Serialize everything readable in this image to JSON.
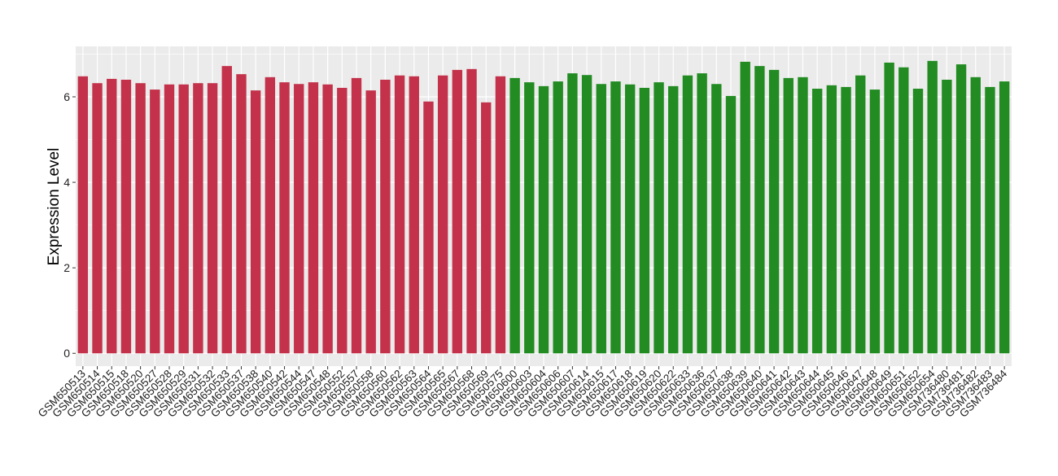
{
  "chart_data": {
    "type": "bar",
    "title": "",
    "xlabel": "",
    "ylabel": "Expression Level",
    "ylim": [
      -0.3,
      7.18
    ],
    "yticks": [
      0,
      2,
      4,
      6
    ],
    "grid": true,
    "legend": "none",
    "colors": {
      "group1": "#C3324A",
      "group2": "#228B22",
      "panel": "#EBEBEB",
      "grid": "#FFFFFF"
    },
    "categories": [
      "GSM650513",
      "GSM650514",
      "GSM650515",
      "GSM650518",
      "GSM650520",
      "GSM650527",
      "GSM650528",
      "GSM650529",
      "GSM650531",
      "GSM650532",
      "GSM650533",
      "GSM650537",
      "GSM650538",
      "GSM650540",
      "GSM650542",
      "GSM650544",
      "GSM650547",
      "GSM650548",
      "GSM650552",
      "GSM650557",
      "GSM650558",
      "GSM650560",
      "GSM650562",
      "GSM650563",
      "GSM650564",
      "GSM650565",
      "GSM650567",
      "GSM650568",
      "GSM650569",
      "GSM650575",
      "GSM650600",
      "GSM650603",
      "GSM650604",
      "GSM650606",
      "GSM650607",
      "GSM650614",
      "GSM650615",
      "GSM650617",
      "GSM650618",
      "GSM650619",
      "GSM650620",
      "GSM650622",
      "GSM650633",
      "GSM650636",
      "GSM650637",
      "GSM650638",
      "GSM650639",
      "GSM650640",
      "GSM650641",
      "GSM650642",
      "GSM650643",
      "GSM650644",
      "GSM650645",
      "GSM650646",
      "GSM650647",
      "GSM650648",
      "GSM650649",
      "GSM650651",
      "GSM650652",
      "GSM650654",
      "GSM736480",
      "GSM736481",
      "GSM736482",
      "GSM736483",
      "GSM736484"
    ],
    "values": [
      6.48,
      6.32,
      6.42,
      6.4,
      6.32,
      6.17,
      6.29,
      6.29,
      6.32,
      6.32,
      6.72,
      6.53,
      6.15,
      6.46,
      6.34,
      6.3,
      6.34,
      6.29,
      6.21,
      6.44,
      6.15,
      6.4,
      6.5,
      6.48,
      5.89,
      6.5,
      6.63,
      6.65,
      5.87,
      6.48,
      6.44,
      6.34,
      6.25,
      6.36,
      6.55,
      6.51,
      6.3,
      6.36,
      6.29,
      6.21,
      6.34,
      6.25,
      6.5,
      6.55,
      6.3,
      6.02,
      6.82,
      6.72,
      6.63,
      6.44,
      6.46,
      6.19,
      6.27,
      6.23,
      6.5,
      6.17,
      6.8,
      6.69,
      6.19,
      6.84,
      6.4,
      6.76,
      6.46,
      6.23,
      6.36
    ],
    "groups": [
      "group1",
      "group1",
      "group1",
      "group1",
      "group1",
      "group1",
      "group1",
      "group1",
      "group1",
      "group1",
      "group1",
      "group1",
      "group1",
      "group1",
      "group1",
      "group1",
      "group1",
      "group1",
      "group1",
      "group1",
      "group1",
      "group1",
      "group1",
      "group1",
      "group1",
      "group1",
      "group1",
      "group1",
      "group1",
      "group1",
      "group2",
      "group2",
      "group2",
      "group2",
      "group2",
      "group2",
      "group2",
      "group2",
      "group2",
      "group2",
      "group2",
      "group2",
      "group2",
      "group2",
      "group2",
      "group2",
      "group2",
      "group2",
      "group2",
      "group2",
      "group2",
      "group2",
      "group2",
      "group2",
      "group2",
      "group2",
      "group2",
      "group2",
      "group2",
      "group2",
      "group2",
      "group2",
      "group2",
      "group2",
      "group2"
    ]
  }
}
